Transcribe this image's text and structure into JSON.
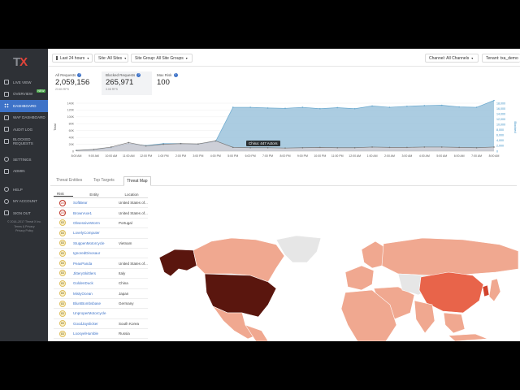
{
  "app": {
    "logo_t": "T",
    "logo_x": "X"
  },
  "sidebar": {
    "items": [
      {
        "label": "Live View",
        "icon": "monitor-icon"
      },
      {
        "label": "Overview",
        "icon": "eye-icon",
        "badge": "NEW"
      },
      {
        "label": "Dashboard",
        "icon": "grid-icon",
        "active": true
      },
      {
        "label": "WAF Dashboard",
        "icon": "shield-icon"
      },
      {
        "label": "Audit Log",
        "icon": "log-icon"
      },
      {
        "label": "Blocked Requests",
        "icon": "block-icon"
      },
      {
        "label": "Settings",
        "icon": "gear-icon"
      },
      {
        "label": "Admin",
        "icon": "admin-icon"
      },
      {
        "label": "Help",
        "icon": "help-icon"
      },
      {
        "label": "My Account",
        "icon": "user-icon"
      },
      {
        "label": "Sign Out",
        "icon": "signout-icon"
      }
    ],
    "footer_line1": "© 2016–2017 Threat X Inc.",
    "footer_line2": "Terms & Privacy",
    "footer_line3": "Privacy Policy"
  },
  "topbar": {
    "time_range": "Last 24 hours",
    "site": "Site: All Sites",
    "site_group": "Site Group: All Site Groups",
    "channel": "Channel: All Channels",
    "tenant": "Tenant: txa_demo"
  },
  "stats": {
    "all_requests": {
      "label": "All Requests",
      "value": "2,059,156",
      "sub": "23.83 RPS"
    },
    "blocked_requests": {
      "label": "Blocked Requests",
      "value": "265,971",
      "sub": "3.08 RPS"
    },
    "risk": {
      "label": "Max Risk",
      "value": "100"
    }
  },
  "chart_data": {
    "type": "area",
    "x": [
      "8:00 AM",
      "9:00 AM",
      "10:00 AM",
      "11:00 AM",
      "12:00 PM",
      "1:00 PM",
      "2:00 PM",
      "3:00 PM",
      "4:00 PM",
      "5:00 PM",
      "6:00 PM",
      "7:00 PM",
      "8:00 PM",
      "9:00 PM",
      "10:00 PM",
      "11:00 PM",
      "12:00 AM",
      "1:00 AM",
      "2:00 AM",
      "3:00 AM",
      "4:00 AM",
      "5:00 AM",
      "6:00 AM",
      "7:00 AM",
      "8:00 AM"
    ],
    "series": [
      {
        "name": "Total",
        "values": [
          2,
          4,
          10,
          22,
          16,
          22,
          22,
          20,
          28,
          128,
          128,
          126,
          125,
          128,
          124,
          127,
          124,
          132,
          128,
          131,
          133,
          134,
          129,
          128,
          148
        ]
      },
      {
        "name": "Blocked",
        "values": [
          2,
          5,
          12,
          25,
          15,
          20,
          22,
          21,
          30,
          11,
          10,
          10,
          9,
          10,
          11,
          10,
          10,
          12,
          11,
          11,
          12,
          12,
          11,
          10,
          12
        ]
      }
    ],
    "left_axis": {
      "label": "Total",
      "ticks": [
        "0",
        "20K",
        "40K",
        "60K",
        "80K",
        "100K",
        "120K",
        "140K"
      ],
      "ylim": [
        0,
        140
      ]
    },
    "right_axis": {
      "label": "Blocked",
      "ticks": [
        "0",
        "2,000",
        "4,000",
        "6,000",
        "8,000",
        "10,000",
        "12,000",
        "14,000",
        "16,000",
        "18,000"
      ]
    },
    "x_ticks": [
      "8:00 AM",
      "9:00 AM",
      "10:00 AM",
      "11:00 AM",
      "12:00 PM",
      "1:00 PM",
      "2:00 PM",
      "3:00 PM",
      "4:00 PM",
      "5:00 PM",
      "6:00 PM",
      "7:00 PM",
      "8:00 PM",
      "9:00 PM",
      "10:00 PM",
      "11:00 PM",
      "12:00 AM",
      "1:00 AM",
      "2:00 AM",
      "3:00 AM",
      "4:00 AM",
      "5:00 AM",
      "6:00 AM",
      "7:00 AM",
      "8:00 AM"
    ],
    "colors": {
      "total": "#9cc3dc",
      "total_line": "#6aa9cf",
      "blocked": "#e4d0d0",
      "blocked_line": "#777777"
    }
  },
  "tabs": [
    {
      "label": "Threat Entities"
    },
    {
      "label": "Top Targets"
    },
    {
      "label": "Threat Map",
      "active": true
    }
  ],
  "table": {
    "headers": [
      "Risk",
      "Entity",
      "Location"
    ],
    "rows": [
      {
        "risk": "100",
        "entity": "SoftBear",
        "location": "United States of...",
        "high": true
      },
      {
        "risk": "100",
        "entity": "BrownAxe1",
        "location": "United States of...",
        "high": true
      },
      {
        "risk": "83",
        "entity": "ObsessiveWorm",
        "location": "Portugal"
      },
      {
        "risk": "83",
        "entity": "LovelyComputer",
        "location": ""
      },
      {
        "risk": "83",
        "entity": "StuppenMotorcycle",
        "location": "Vietnam"
      },
      {
        "risk": "83",
        "entity": "IgnoredDinosaur",
        "location": ""
      },
      {
        "risk": "83",
        "entity": "PeaxPanda",
        "location": "United States of..."
      },
      {
        "risk": "83",
        "entity": "JitterySkittlers",
        "location": "Italy"
      },
      {
        "risk": "83",
        "entity": "GoldenDuck",
        "location": "China"
      },
      {
        "risk": "83",
        "entity": "MistyOcean",
        "location": "Japan"
      },
      {
        "risk": "83",
        "entity": "BluntBombsbase",
        "location": "Germany"
      },
      {
        "risk": "83",
        "entity": "UnproperMotorcycle",
        "location": ""
      },
      {
        "risk": "83",
        "entity": "GoodJayslicker",
        "location": "South Korea"
      },
      {
        "risk": "83",
        "entity": "LoosyelHumble",
        "location": "Russia"
      }
    ]
  },
  "map": {
    "tooltip": "China: 447 Actors",
    "colors": {
      "ocean": "#ffffff",
      "none": "#e6e6e6",
      "low": "#f0a890",
      "mid": "#e8644a",
      "high": "#d1422c",
      "max": "#5a160e"
    }
  }
}
